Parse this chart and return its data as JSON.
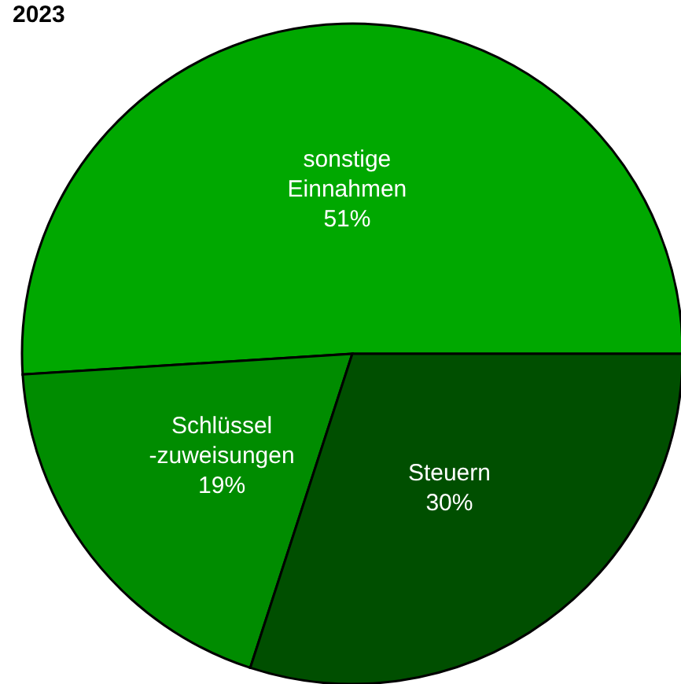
{
  "chart_data": {
    "type": "pie",
    "title": "2023",
    "categories": [
      "sonstige\nEinnahmen",
      "Schlüssel\n-zuweisungen",
      "Steuern"
    ],
    "values": [
      51,
      19,
      30
    ],
    "colors": [
      "#00a800",
      "#008c00",
      "#004f00"
    ],
    "value_labels": [
      "51%",
      "19%",
      "30%"
    ]
  }
}
